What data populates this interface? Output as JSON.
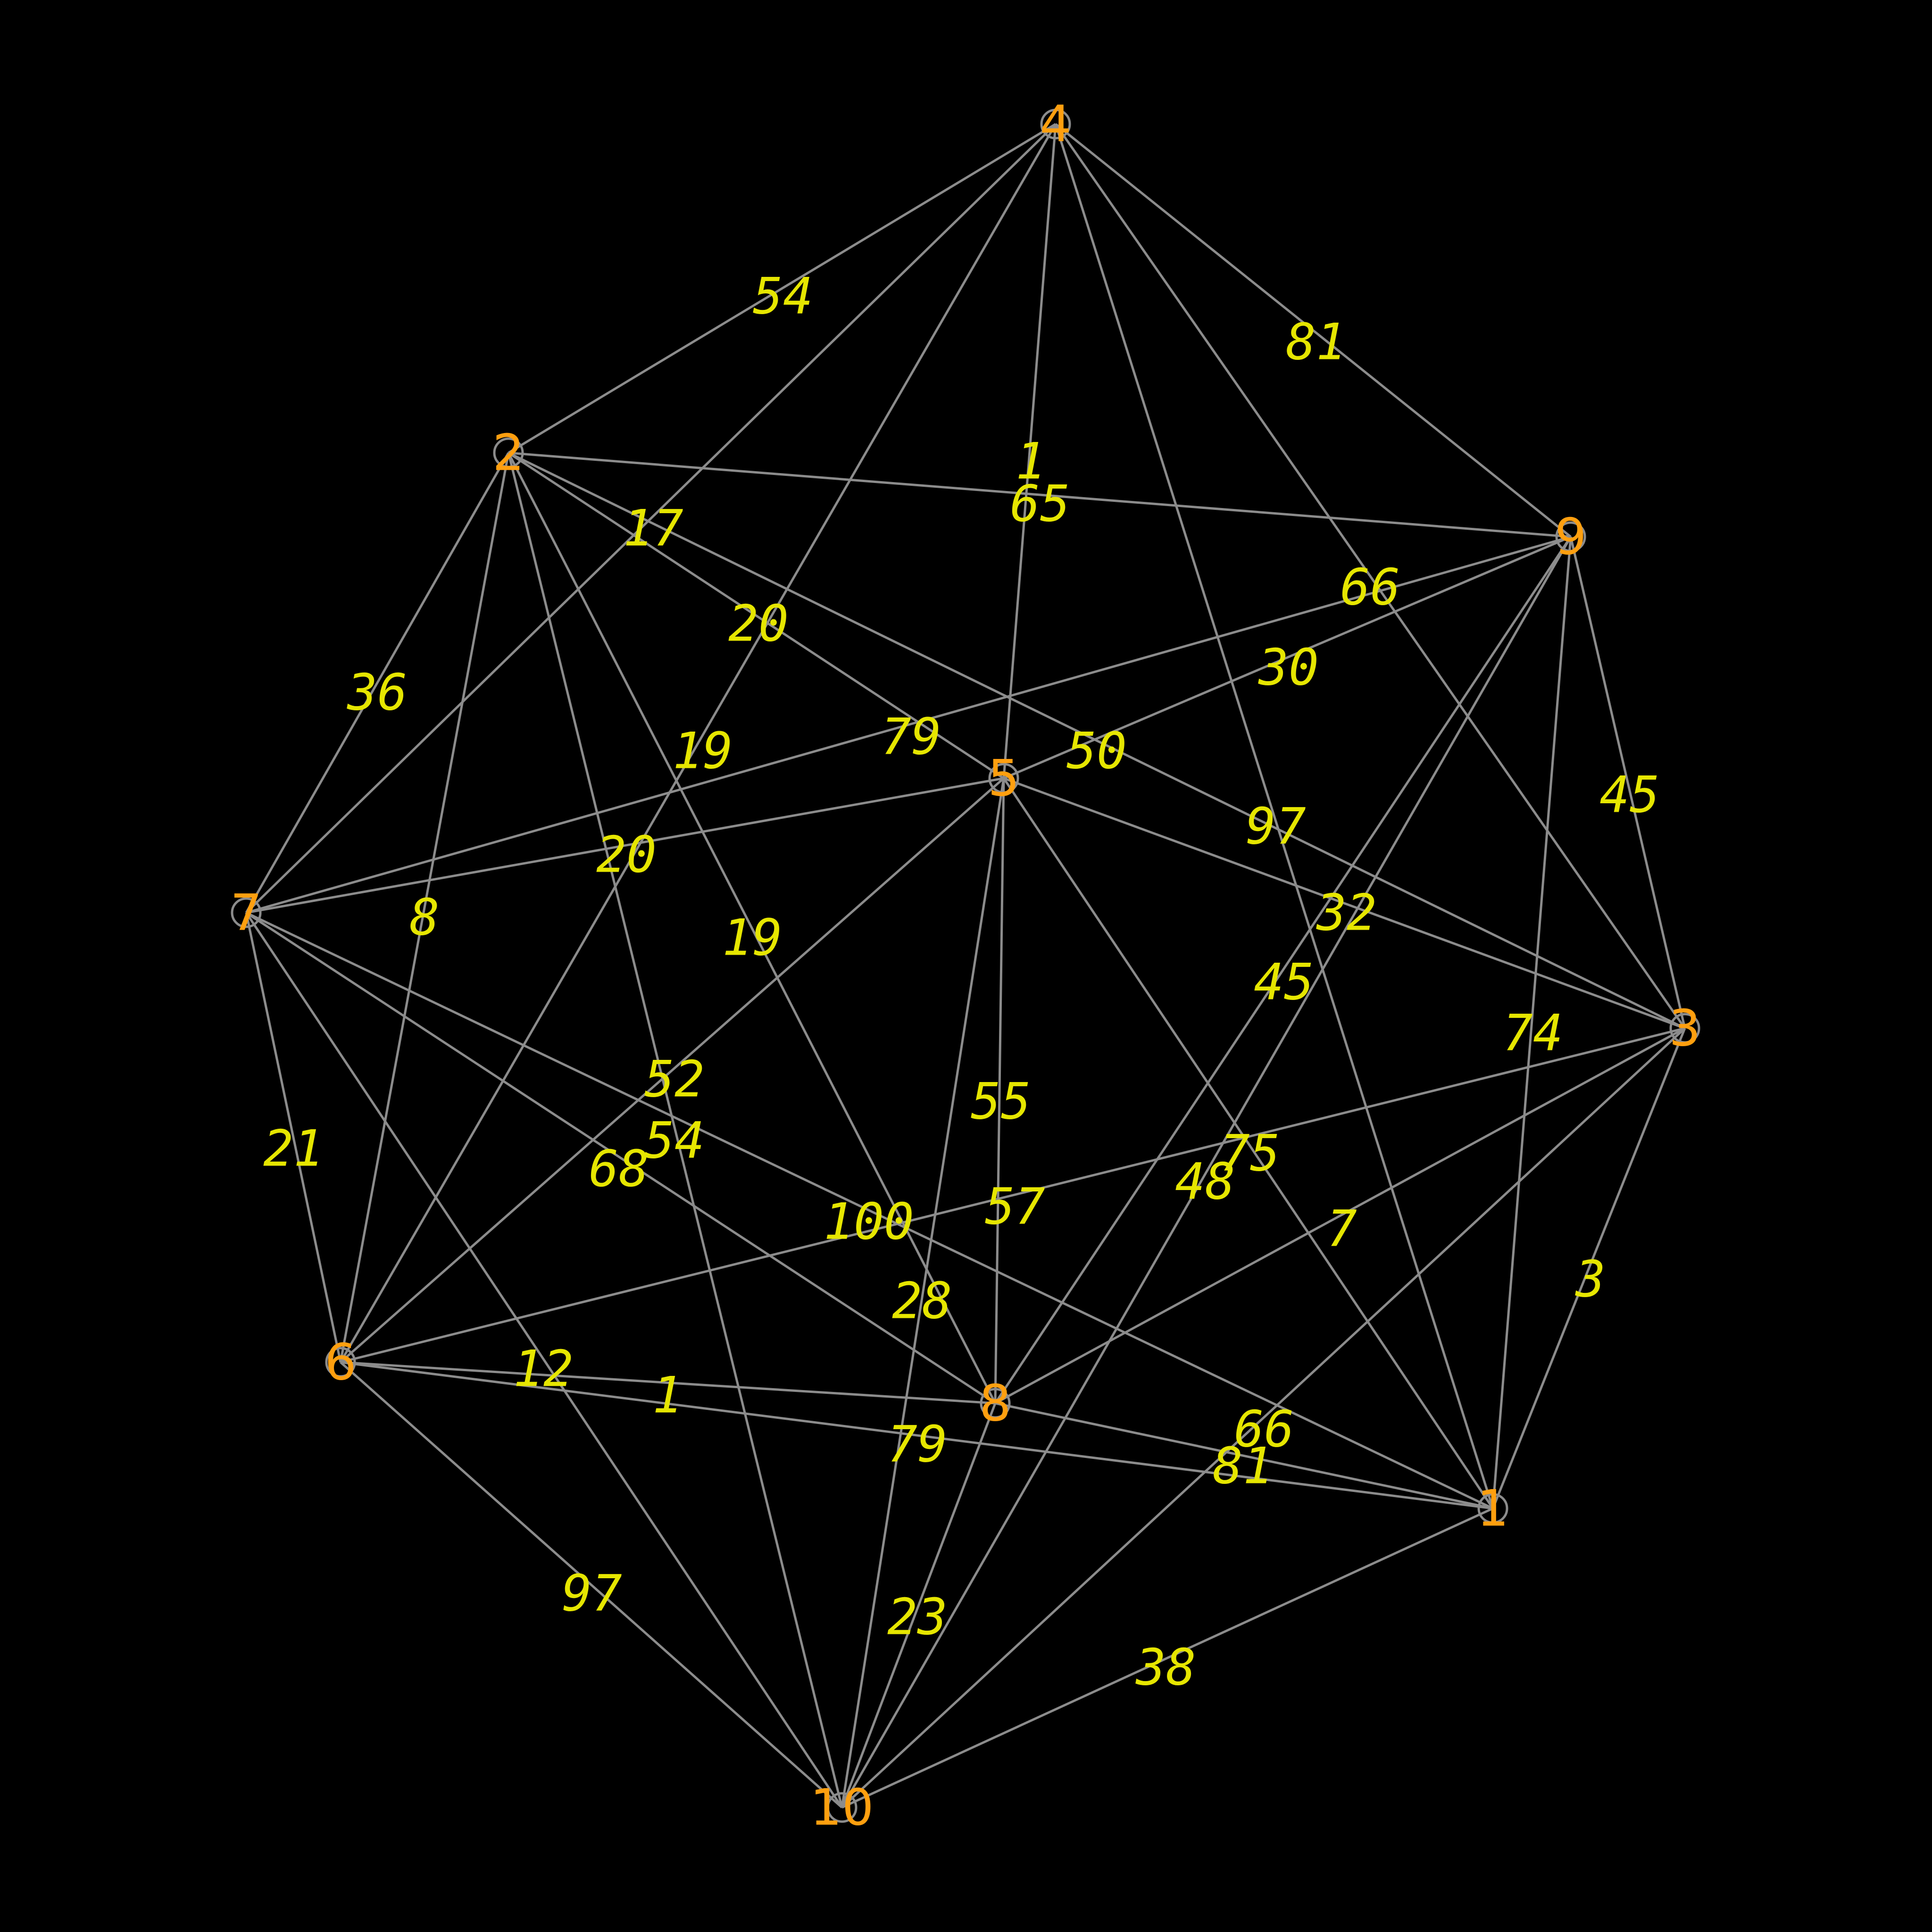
{
  "graph": {
    "colors": {
      "background": "#000000",
      "edge": "#8c8c8c",
      "node_label": "#ff9f0f",
      "weight_label": "#e6e600"
    },
    "nodes": [
      {
        "id": "1",
        "label": "1"
      },
      {
        "id": "2",
        "label": "2"
      },
      {
        "id": "3",
        "label": "3"
      },
      {
        "id": "4",
        "label": "4"
      },
      {
        "id": "5",
        "label": "5"
      },
      {
        "id": "6",
        "label": "6"
      },
      {
        "id": "7",
        "label": "7"
      },
      {
        "id": "8",
        "label": "8"
      },
      {
        "id": "9",
        "label": "9"
      },
      {
        "id": "10",
        "label": "10"
      }
    ],
    "edges": [
      {
        "from": "4",
        "to": "2",
        "weight": "54"
      },
      {
        "from": "4",
        "to": "9",
        "weight": "81"
      },
      {
        "from": "4",
        "to": "7",
        "weight": "17"
      },
      {
        "from": "4",
        "to": "6",
        "weight": "19"
      },
      {
        "from": "4",
        "to": "5",
        "weight": "1"
      },
      {
        "from": "4",
        "to": "1",
        "weight": "32"
      },
      {
        "from": "4",
        "to": "3",
        "weight": "66"
      },
      {
        "from": "2",
        "to": "9",
        "weight": "65"
      },
      {
        "from": "2",
        "to": "7",
        "weight": "36"
      },
      {
        "from": "2",
        "to": "6",
        "weight": "8"
      },
      {
        "from": "2",
        "to": "5",
        "weight": "20"
      },
      {
        "from": "2",
        "to": "3",
        "weight": "97"
      },
      {
        "from": "2",
        "to": "8",
        "weight": "19"
      },
      {
        "from": "2",
        "to": "10",
        "weight": "54"
      },
      {
        "from": "9",
        "to": "7",
        "weight": "79"
      },
      {
        "from": "9",
        "to": "5",
        "weight": "30"
      },
      {
        "from": "9",
        "to": "3",
        "weight": "45"
      },
      {
        "from": "9",
        "to": "1",
        "weight": "74"
      },
      {
        "from": "9",
        "to": "8",
        "weight": "45"
      },
      {
        "from": "9",
        "to": "10",
        "weight": "48"
      },
      {
        "from": "7",
        "to": "5",
        "weight": "20"
      },
      {
        "from": "7",
        "to": "6",
        "weight": "21"
      },
      {
        "from": "7",
        "to": "8",
        "weight": "68"
      },
      {
        "from": "7",
        "to": "1",
        "weight": "100"
      },
      {
        "from": "7",
        "to": "10",
        "weight": "12"
      },
      {
        "from": "5",
        "to": "3",
        "weight": "50"
      },
      {
        "from": "5",
        "to": "6",
        "weight": "52"
      },
      {
        "from": "5",
        "to": "8",
        "weight": "55"
      },
      {
        "from": "5",
        "to": "1",
        "weight": "75"
      },
      {
        "from": "5",
        "to": "10",
        "weight": "28"
      },
      {
        "from": "3",
        "to": "6",
        "weight": "57"
      },
      {
        "from": "3",
        "to": "8",
        "weight": "7"
      },
      {
        "from": "3",
        "to": "1",
        "weight": "3"
      },
      {
        "from": "3",
        "to": "10",
        "weight": "66"
      },
      {
        "from": "6",
        "to": "8",
        "weight": "1"
      },
      {
        "from": "6",
        "to": "1",
        "weight": "79"
      },
      {
        "from": "6",
        "to": "10",
        "weight": "97"
      },
      {
        "from": "8",
        "to": "1",
        "weight": "81"
      },
      {
        "from": "8",
        "to": "10",
        "weight": "23"
      },
      {
        "from": "1",
        "to": "10",
        "weight": "38"
      }
    ]
  }
}
